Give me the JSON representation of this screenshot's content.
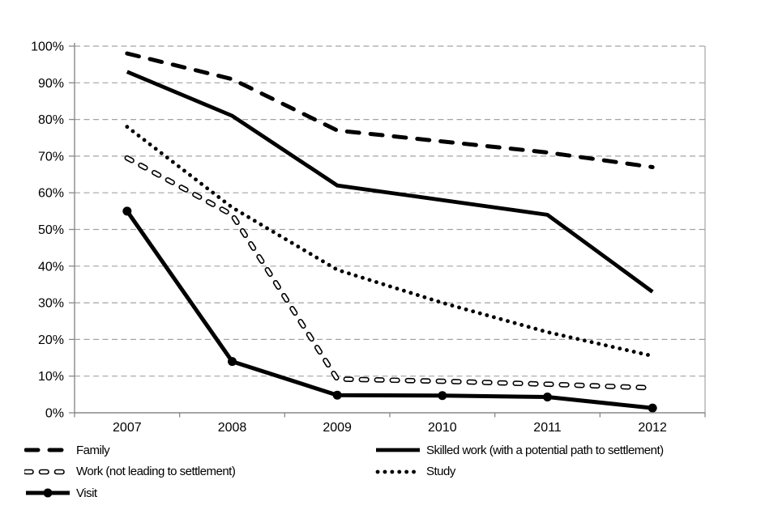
{
  "chart_data": {
    "type": "line",
    "title": "",
    "xlabel": "",
    "ylabel": "",
    "categories": [
      "2007",
      "2008",
      "2009",
      "2010",
      "2011",
      "2012"
    ],
    "series": [
      {
        "name": "Family",
        "style": "dashed",
        "values": [
          98,
          91,
          77,
          74,
          71,
          67
        ]
      },
      {
        "name": "Skilled work (with a potential path to settlement)",
        "style": "solid",
        "values": [
          93,
          81,
          62,
          58,
          54,
          33
        ]
      },
      {
        "name": "Work (not leading to settlement)",
        "style": "hollow-dashed",
        "values": [
          69.5,
          54,
          9.2,
          8.6,
          7.8,
          6.8
        ]
      },
      {
        "name": "Study",
        "style": "dotted",
        "values": [
          78,
          56,
          39,
          30,
          22,
          15.5
        ]
      },
      {
        "name": "Visit",
        "style": "solid-marker",
        "values": [
          55,
          14,
          4.8,
          4.7,
          4.3,
          1.3
        ]
      }
    ],
    "ylim": [
      0,
      100
    ],
    "y_tick_step": 10,
    "y_tick_labels": [
      "0%",
      "10%",
      "20%",
      "30%",
      "40%",
      "50%",
      "60%",
      "70%",
      "80%",
      "90%",
      "100%"
    ],
    "grid": "horizontal-dashed",
    "legend_position": "bottom-two-columns"
  },
  "colors": {
    "line": "#000000",
    "marker_fill": "#000000",
    "hollow_dash_fill": "#ffffff",
    "grid": "#a3a3a3",
    "axis": "#888888",
    "text": "#000000",
    "background": "#ffffff"
  }
}
